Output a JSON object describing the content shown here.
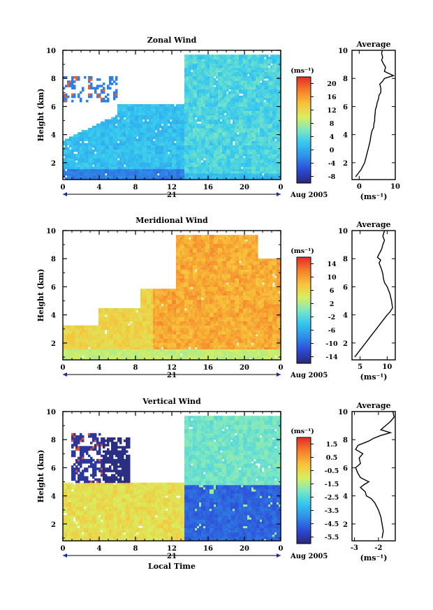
{
  "chart_data": [
    {
      "type": "heatmap",
      "title": "Zonal Wind",
      "ylabel": "Height (km)",
      "ylim": [
        0.8,
        10
      ],
      "yticks": [
        "2",
        "4",
        "6",
        "8",
        "10"
      ],
      "xticks": [
        "0",
        "4",
        "8",
        "12",
        "16",
        "20",
        "0"
      ],
      "day_label": "21",
      "date_label": "Aug 2005",
      "colorbar": {
        "unit": "(ms⁻¹)",
        "ticks": [
          "20",
          "16",
          "12",
          "8",
          "4",
          "0",
          "-4",
          "-8"
        ],
        "range": [
          -10,
          22
        ]
      },
      "profile": {
        "title": "Average",
        "xlabel": "(ms⁻¹)",
        "xticks": [
          "0",
          "10"
        ],
        "yticks": [
          "2",
          "4",
          "6",
          "8",
          "10"
        ],
        "xlim": [
          -2,
          10
        ],
        "x": [
          -1.0,
          0.5,
          1.5,
          2.0,
          2.5,
          3.0,
          3.3,
          3.6,
          4.0,
          4.1,
          4.3,
          4.3,
          4.4,
          4.5,
          4.8,
          5.0,
          5.3,
          5.5,
          6.0,
          6.0,
          5.7,
          6.5,
          7.0,
          9.5,
          7.0,
          7.3,
          6.8,
          6.2,
          6.5,
          6.2,
          6.4
        ],
        "y": [
          1.0,
          1.5,
          2.0,
          2.5,
          3.0,
          3.5,
          4.0,
          4.3,
          4.5,
          4.8,
          5.0,
          5.2,
          5.5,
          5.8,
          6.0,
          6.3,
          6.5,
          6.8,
          7.0,
          7.3,
          7.6,
          7.8,
          8.0,
          8.2,
          8.5,
          8.8,
          9.0,
          9.3,
          9.5,
          9.8,
          10.0
        ]
      }
    },
    {
      "type": "heatmap",
      "title": "Meridional Wind",
      "ylabel": "Height (km)",
      "ylim": [
        0.8,
        10
      ],
      "yticks": [
        "2",
        "4",
        "6",
        "8",
        "10"
      ],
      "xticks": [
        "0",
        "4",
        "8",
        "12",
        "16",
        "20",
        "0"
      ],
      "day_label": "21",
      "date_label": "Aug 2005",
      "colorbar": {
        "unit": "(ms⁻¹)",
        "ticks": [
          "14",
          "10",
          "6",
          "2",
          "-2",
          "-6",
          "-10",
          "-14"
        ],
        "range": [
          -16,
          16
        ]
      },
      "profile": {
        "title": "Average",
        "xlabel": "(ms⁻¹)",
        "xticks": [
          "5",
          "10"
        ],
        "yticks": [
          "2",
          "4",
          "6",
          "8",
          "10"
        ],
        "xlim": [
          3.5,
          11.5
        ],
        "x": [
          4.0,
          5.0,
          6.0,
          7.0,
          8.0,
          9.0,
          10.0,
          10.5,
          11.0,
          10.8,
          10.5,
          10.0,
          9.5,
          9.3,
          9.2,
          9.0,
          8.7,
          8.5,
          8.8,
          8.2,
          8.6,
          9.0,
          9.2,
          9.5,
          9.2,
          9.5
        ],
        "y": [
          1.0,
          1.5,
          2.0,
          2.5,
          3.0,
          3.5,
          4.0,
          4.2,
          4.5,
          5.0,
          5.5,
          6.0,
          6.3,
          6.6,
          6.9,
          7.2,
          7.5,
          7.7,
          7.9,
          8.1,
          8.4,
          8.7,
          9.0,
          9.3,
          9.6,
          10.0
        ]
      }
    },
    {
      "type": "heatmap",
      "title": "Vertical Wind",
      "ylabel": "Height (km)",
      "ylim": [
        0.8,
        10
      ],
      "yticks": [
        "2",
        "4",
        "6",
        "8",
        "10"
      ],
      "xticks": [
        "0",
        "4",
        "8",
        "12",
        "16",
        "20",
        "0"
      ],
      "day_label": "21",
      "date_label": "Aug 2005",
      "x_axis_label": "Local Time",
      "colorbar": {
        "unit": "(ms⁻¹)",
        "ticks": [
          "1.5",
          "0.5",
          "-0.5",
          "-1.5",
          "-2.5",
          "-3.5",
          "-4.5",
          "-5.5"
        ],
        "range": [
          -6,
          2
        ]
      },
      "profile": {
        "title": "Average",
        "xlabel": "(ms⁻¹)",
        "xticks": [
          "-3",
          "-2"
        ],
        "yticks": [
          "2",
          "4",
          "6",
          "8",
          "10"
        ],
        "xlim": [
          -3.1,
          -1.3
        ],
        "x": [
          -1.85,
          -1.8,
          -1.85,
          -1.9,
          -2.0,
          -2.15,
          -2.3,
          -2.5,
          -2.55,
          -2.75,
          -2.6,
          -2.4,
          -2.75,
          -2.85,
          -2.95,
          -2.75,
          -2.8,
          -2.65,
          -2.95,
          -2.85,
          -2.4,
          -2.2,
          -1.9,
          -1.5,
          -1.9,
          -1.7,
          -1.5,
          -1.35,
          -1.4
        ],
        "y": [
          1.0,
          1.5,
          2.0,
          2.5,
          3.0,
          3.5,
          3.8,
          4.0,
          4.3,
          4.6,
          4.8,
          5.0,
          5.3,
          5.6,
          6.0,
          6.3,
          6.7,
          7.0,
          7.3,
          7.6,
          7.9,
          8.1,
          8.3,
          8.5,
          8.7,
          9.0,
          9.3,
          9.6,
          10.0
        ]
      }
    }
  ]
}
